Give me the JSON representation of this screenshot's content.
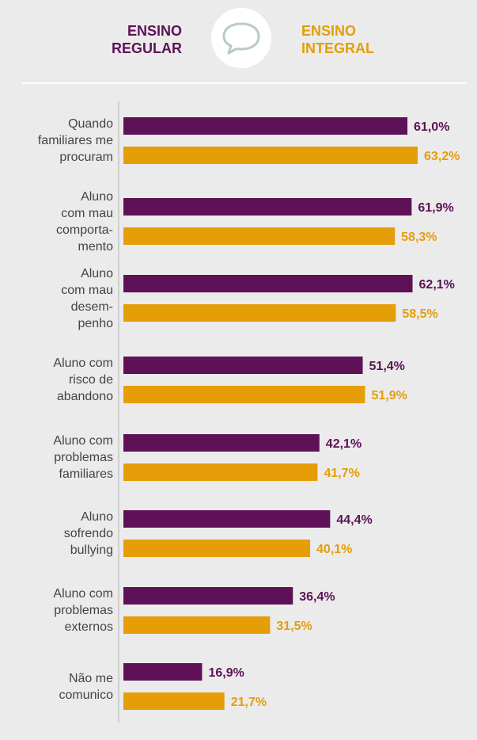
{
  "legend": {
    "regular_label": "ENSINO\nREGULAR",
    "integral_label": "ENSINO\nINTEGRAL"
  },
  "icons": {
    "badge": "chat-bubble-icon"
  },
  "colors": {
    "regular": "#5e1157",
    "integral": "#e59d08",
    "background": "#ebebeb"
  },
  "chart_data": {
    "type": "bar",
    "orientation": "horizontal",
    "categories": [
      "Quando\nfamiliares me\nprocuram",
      "Aluno\ncom mau\ncomporta-\nmento",
      "Aluno\ncom mau\ndesem-\npenho",
      "Aluno com\nrisco de\nabandono",
      "Aluno com\nproblemas\nfamiliares",
      "Aluno\nsofrendo\nbullying",
      "Aluno com\nproblemas\nexternos",
      "Não me\ncomunico"
    ],
    "series": [
      {
        "name": "ENSINO REGULAR",
        "values": [
          61.0,
          61.9,
          62.1,
          51.4,
          42.1,
          44.4,
          36.4,
          16.9
        ],
        "labels": [
          "61,0%",
          "61,9%",
          "62,1%",
          "51,4%",
          "42,1%",
          "44,4%",
          "36,4%",
          "16,9%"
        ]
      },
      {
        "name": "ENSINO INTEGRAL",
        "values": [
          63.2,
          58.3,
          58.5,
          51.9,
          41.7,
          40.1,
          31.5,
          21.7
        ],
        "labels": [
          "63,2%",
          "58,3%",
          "58,5%",
          "51,9%",
          "41,7%",
          "40,1%",
          "31,5%",
          "21,7%"
        ]
      }
    ],
    "xlim": [
      0,
      100
    ]
  }
}
